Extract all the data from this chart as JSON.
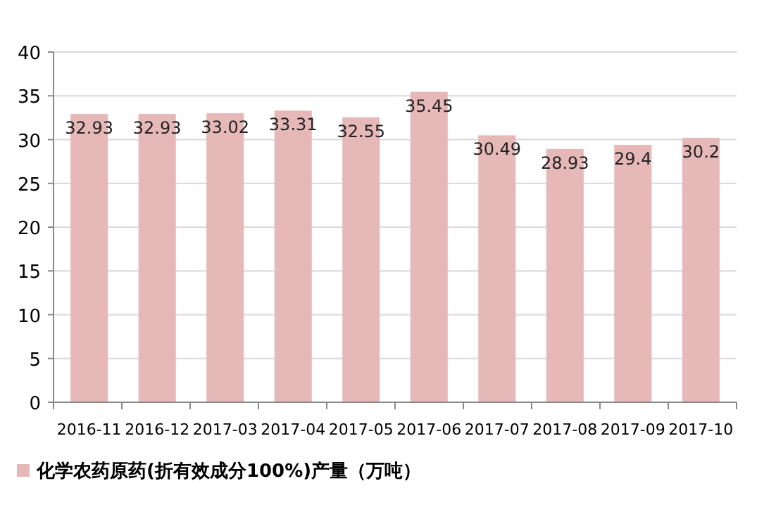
{
  "chart_data": {
    "type": "bar",
    "categories": [
      "2016-11",
      "2016-12",
      "2017-03",
      "2017-04",
      "2017-05",
      "2017-06",
      "2017-07",
      "2017-08",
      "2017-09",
      "2017-10"
    ],
    "series": [
      {
        "name": "化学农药原药(折有效成分100%)产量（万吨）",
        "color": "#e6b9b8",
        "values": [
          32.93,
          32.93,
          33.02,
          33.31,
          32.55,
          35.45,
          30.49,
          28.93,
          29.4,
          30.2
        ]
      }
    ],
    "ylim": [
      0,
      40
    ],
    "yticks": [
      0,
      5,
      10,
      15,
      20,
      25,
      30,
      35,
      40
    ],
    "grid": "y",
    "data_labels": true,
    "legend": "bottom"
  }
}
